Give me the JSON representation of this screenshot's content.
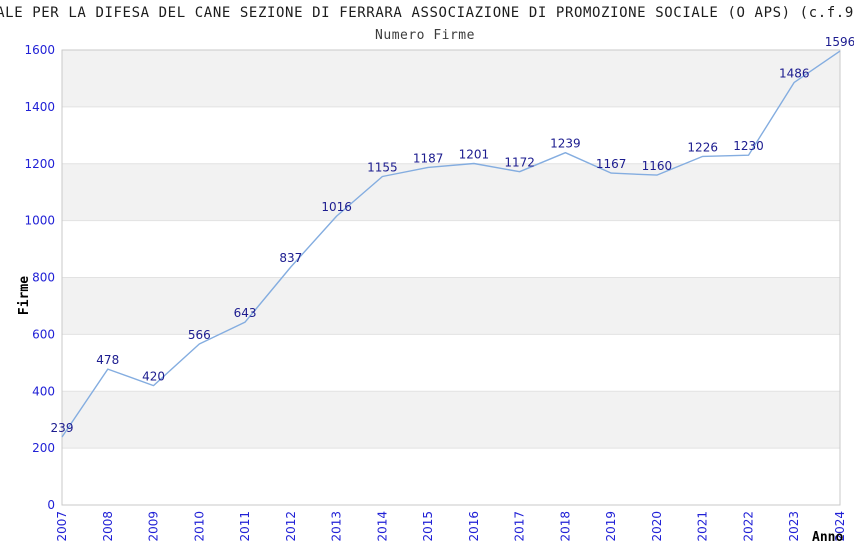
{
  "header": {
    "title": "ALE PER LA DIFESA DEL CANE SEZIONE DI FERRARA ASSOCIAZIONE DI PROMOZIONE SOCIALE (O APS) (c.f.9"
  },
  "chart_data": {
    "type": "line",
    "title": "Numero Firme",
    "xlabel": "Anno",
    "ylabel": "Firme",
    "x": [
      "2007",
      "2008",
      "2009",
      "2010",
      "2011",
      "2012",
      "2013",
      "2014",
      "2015",
      "2016",
      "2017",
      "2018",
      "2019",
      "2020",
      "2021",
      "2022",
      "2023",
      "2024"
    ],
    "series": [
      {
        "name": "Numero Firme",
        "values": [
          239,
          478,
          420,
          566,
          643,
          837,
          1016,
          1155,
          1187,
          1201,
          1172,
          1239,
          1167,
          1160,
          1226,
          1230,
          1486,
          1596
        ]
      }
    ],
    "ylim": [
      0,
      1600
    ],
    "ytick_step": 200,
    "grid": "horizontal",
    "band_fill": "alternating",
    "legend_position": "none",
    "data_labels": true
  },
  "colors": {
    "line": "#84ade0",
    "data_label": "#1c1c8f",
    "tick_label": "#2121d6",
    "axis_title": "#000000",
    "band": "#f2f2f2",
    "grid": "#e2e2e2",
    "plot_border": "#c9c9c9",
    "background": "#ffffff"
  }
}
